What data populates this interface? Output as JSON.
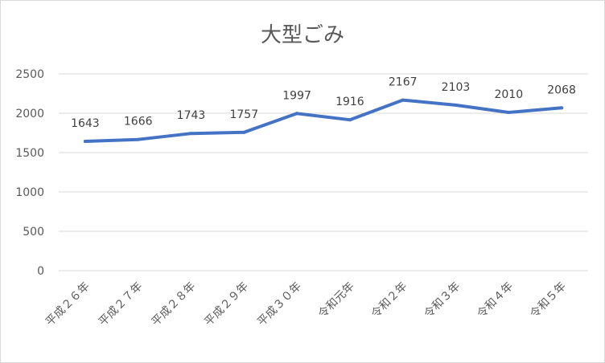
{
  "chart_data": {
    "type": "line",
    "title": "大型ごみ",
    "xlabel": "",
    "ylabel": "",
    "categories": [
      "平成２６年",
      "平成２７年",
      "平成２８年",
      "平成２９年",
      "平成３０年",
      "令和元年",
      "令和２年",
      "令和３年",
      "令和４年",
      "令和５年"
    ],
    "series": [
      {
        "values": [
          1643,
          1666,
          1743,
          1757,
          1997,
          1916,
          2167,
          2103,
          2010,
          2068
        ]
      }
    ],
    "ylim": [
      0,
      2500
    ],
    "yticks": [
      0,
      500,
      1000,
      1500,
      2000,
      2500
    ],
    "grid": true,
    "legend": "none",
    "colors": {
      "line": "#4472c4",
      "grid": "#d9d9d9",
      "text": "#595959"
    }
  }
}
